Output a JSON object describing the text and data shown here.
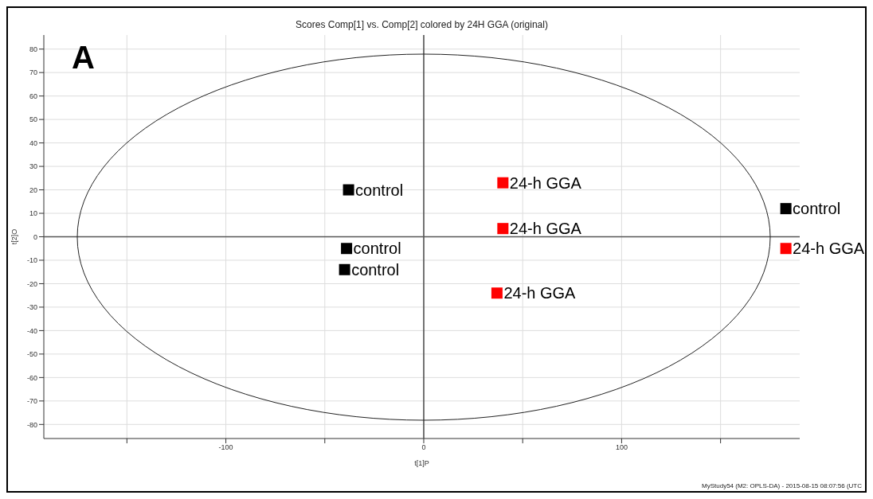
{
  "chart_data": {
    "type": "scatter",
    "title": "Scores Comp[1] vs. Comp[2] colored by 24H GGA (original)",
    "xlabel": "t[1]P",
    "ylabel": "t[2]O",
    "xlim": [
      -192,
      190
    ],
    "ylim": [
      -86,
      86
    ],
    "xticks": [
      {
        "value": -150,
        "label": null
      },
      -100,
      {
        "value": -50,
        "label": null
      },
      0,
      {
        "value": 50,
        "label": null
      },
      100,
      {
        "value": 150,
        "label": null
      }
    ],
    "yticks": [
      -80,
      -70,
      -60,
      -50,
      -40,
      -30,
      -20,
      -10,
      0,
      10,
      20,
      30,
      40,
      50,
      60,
      70,
      80
    ],
    "grid": true,
    "marker": "square",
    "annotations": [
      "A",
      "MyStudy54 (M2: OPLS-DA) - 2015-08-15 08:07:56 (UTC"
    ],
    "series": [
      {
        "name": "control",
        "color": "#000000",
        "x": [
          -38,
          -39,
          -40,
          183
        ],
        "values": [
          20,
          -5,
          -14,
          12
        ]
      },
      {
        "name": "24-h GGA",
        "color": "#ff0000",
        "x": [
          40,
          40,
          37,
          183
        ],
        "values": [
          23,
          3.5,
          -24,
          -5
        ]
      }
    ]
  }
}
